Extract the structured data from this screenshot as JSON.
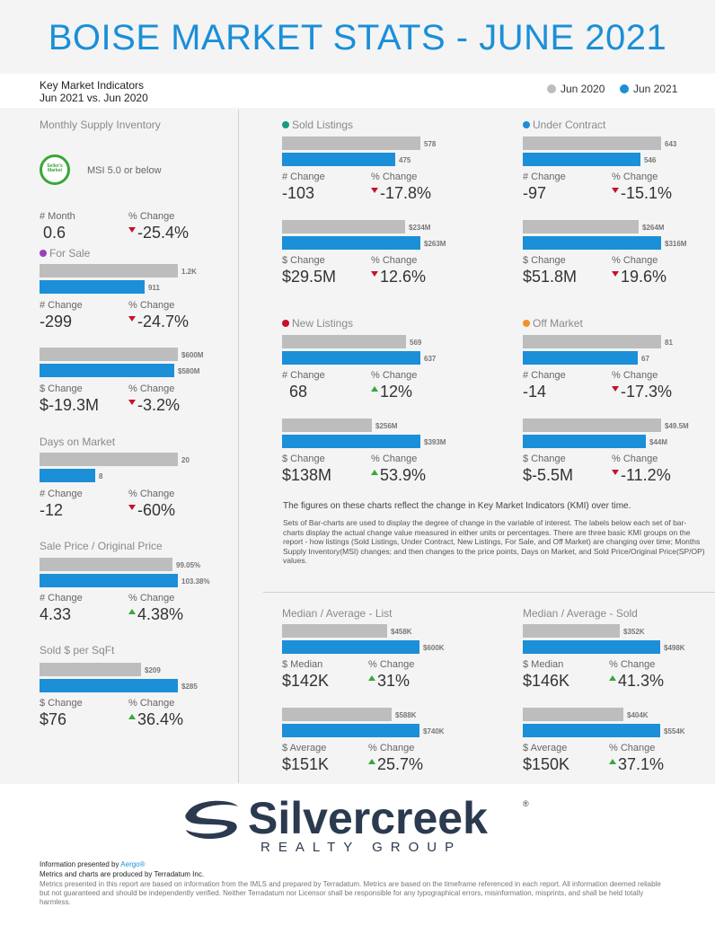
{
  "title": "BOISE MARKET STATS - JUNE 2021",
  "kmi": {
    "line1": "Key Market Indicators",
    "line2": "Jun 2021 vs. Jun 2020"
  },
  "legend": {
    "prev": "Jun 2020",
    "curr": "Jun 2021",
    "prev_color": "#bdbdbd",
    "curr_color": "#1b8fd8"
  },
  "msi": {
    "title": "Monthly Supply Inventory",
    "seal_text": "Seller's Market",
    "desc": "MSI 5.0 or below",
    "lbl1": "# Month",
    "v1": "0.6",
    "lbl2": "% Change",
    "v2": "-25.4%"
  },
  "for_sale": {
    "title": "For Sale",
    "dot": "#9b3fbf",
    "c1": {
      "a": "1.2K",
      "b": "911",
      "lbl1": "# Change",
      "v1": "-299",
      "lbl2": "% Change",
      "v2": "-24.7%"
    },
    "c2": {
      "a": "$600M",
      "b": "$580M",
      "lbl1": "$ Change",
      "v1": "$-19.3M",
      "lbl2": "% Change",
      "v2": "-3.2%"
    }
  },
  "dom": {
    "title": "Days on Market",
    "a": "20",
    "b": "8",
    "lbl1": "# Change",
    "v1": "-12",
    "lbl2": "% Change",
    "v2": "-60%"
  },
  "sp": {
    "title": "Sale Price / Original Price",
    "a": "99.05%",
    "b": "103.38%",
    "lbl1": "# Change",
    "v1": "4.33",
    "lbl2": "% Change",
    "v2": "4.38%"
  },
  "sqft": {
    "title": "Sold $ per SqFt",
    "a": "$209",
    "b": "$285",
    "lbl1": "$ Change",
    "v1": "$76",
    "lbl2": "% Change",
    "v2": "36.4%"
  },
  "sold": {
    "title": "Sold Listings",
    "dot": "#1a9a7f",
    "c1": {
      "a": "578",
      "b": "475",
      "lbl1": "# Change",
      "v1": "-103",
      "lbl2": "% Change",
      "v2": "-17.8%"
    },
    "c2": {
      "a": "$234M",
      "b": "$263M",
      "lbl1": "$ Change",
      "v1": "$29.5M",
      "lbl2": "% Change",
      "v2": "12.6%"
    }
  },
  "under": {
    "title": "Under Contract",
    "dot": "#1b8fd8",
    "c1": {
      "a": "643",
      "b": "546",
      "lbl1": "# Change",
      "v1": "-97",
      "lbl2": "% Change",
      "v2": "-15.1%"
    },
    "c2": {
      "a": "$264M",
      "b": "$316M",
      "lbl1": "$ Change",
      "v1": "$51.8M",
      "lbl2": "% Change",
      "v2": "19.6%"
    }
  },
  "newl": {
    "title": "New Listings",
    "dot": "#c8102e",
    "c1": {
      "a": "569",
      "b": "637",
      "lbl1": "# Change",
      "v1": "68",
      "lbl2": "% Change",
      "v2": "12%"
    },
    "c2": {
      "a": "$256M",
      "b": "$393M",
      "lbl1": "$ Change",
      "v1": "$138M",
      "lbl2": "% Change",
      "v2": "53.9%"
    }
  },
  "off": {
    "title": "Off Market",
    "dot": "#f0922b",
    "c1": {
      "a": "81",
      "b": "67",
      "lbl1": "# Change",
      "v1": "-14",
      "lbl2": "% Change",
      "v2": "-17.3%"
    },
    "c2": {
      "a": "$49.5M",
      "b": "$44M",
      "lbl1": "$ Change",
      "v1": "$-5.5M",
      "lbl2": "% Change",
      "v2": "-11.2%"
    }
  },
  "note_main": "The figures on these charts reflect the change in Key Market Indicators (KMI) over time.",
  "note_sub": "Sets of Bar-charts are used to display the degree of change in the variable of interest. The labels below each set of bar-charts display the actual change value measured in either units or percentages. There are three basic KMI groups on the report - how listings (Sold Listings, Under Contract, New Listings, For Sale, and Off Market) are changing over time; Months Supply Inventory(MSI) changes; and then changes to the price points, Days on Market, and Sold Price/Original Price(SP/OP) values.",
  "mal": {
    "title": "Median / Average - List",
    "c1": {
      "a": "$458K",
      "b": "$600K",
      "lbl1": "$ Median",
      "v1": "$142K",
      "lbl2": "% Change",
      "v2": "31%"
    },
    "c2": {
      "a": "$588K",
      "b": "$740K",
      "lbl1": "$ Average",
      "v1": "$151K",
      "lbl2": "% Change",
      "v2": "25.7%"
    }
  },
  "mas": {
    "title": "Median / Average - Sold",
    "c1": {
      "a": "$352K",
      "b": "$498K",
      "lbl1": "$ Median",
      "v1": "$146K",
      "lbl2": "% Change",
      "v2": "41.3%"
    },
    "c2": {
      "a": "$404K",
      "b": "$554K",
      "lbl1": "$ Average",
      "v1": "$150K",
      "lbl2": "% Change",
      "v2": "37.1%"
    }
  },
  "logo": {
    "word": "Silvercreek",
    "sub": "REALTY GROUP",
    "reg": "®"
  },
  "footer": {
    "presented_prefix": "Information presented by ",
    "presented_link": "Aergo®",
    "line2": "Metrics and charts are produced by Terradatum Inc.",
    "line3": "Metrics presented in this report are based on information from the IMLS and prepared by Terradatum. Metrics are based on the timeframe referenced in each report. All information deemed reliable but not guaranteed and should be independently verified. Neither Terradatum nor Licensor shall be responsible for any typographical errors, misinformation, misprints, and shall be held totally harmless."
  }
}
